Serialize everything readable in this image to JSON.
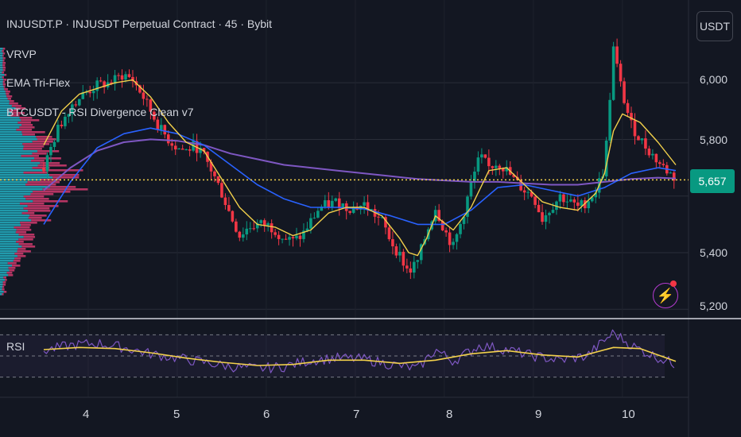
{
  "header": {
    "title": "INJUSDT.P · INJUSDT Perpetual Contract · 45 · Bybit",
    "indicators": [
      "VRVP",
      "EMA Tri-Flex",
      "BTCUSDT - RSI Divergence Clean v7"
    ],
    "currency": "USDT",
    "rsi_label": "RSI"
  },
  "price_tag": "5,657",
  "colors": {
    "background": "#131722",
    "up": "#089981",
    "down": "#f23645",
    "ema_fast": "#f2d04b",
    "ema_mid": "#2962ff",
    "ema_slow": "#7e57c2",
    "rsi": "#7e57c2",
    "vp_up": "#26c6da",
    "vp_down": "#ec407a"
  },
  "chart_data": {
    "type": "candlestick",
    "x_ticks": [
      "4",
      "5",
      "6",
      "7",
      "8",
      "9",
      "10"
    ],
    "y_ticks": [
      "6,000",
      "5,800",
      "5,400",
      "5,200"
    ],
    "y_range": [
      5170,
      6180
    ],
    "last_price": 5657,
    "price_close_path": [
      [
        3.5,
        5700
      ],
      [
        3.65,
        5830
      ],
      [
        3.8,
        5920
      ],
      [
        3.95,
        5960
      ],
      [
        4.1,
        5990
      ],
      [
        4.25,
        6000
      ],
      [
        4.4,
        6030
      ],
      [
        4.5,
        6010
      ],
      [
        4.6,
        5960
      ],
      [
        4.7,
        5900
      ],
      [
        4.8,
        5840
      ],
      [
        4.9,
        5800
      ],
      [
        5.0,
        5770
      ],
      [
        5.1,
        5760
      ],
      [
        5.2,
        5780
      ],
      [
        5.3,
        5740
      ],
      [
        5.4,
        5680
      ],
      [
        5.5,
        5610
      ],
      [
        5.6,
        5530
      ],
      [
        5.7,
        5460
      ],
      [
        5.8,
        5490
      ],
      [
        5.9,
        5500
      ],
      [
        6.0,
        5500
      ],
      [
        6.1,
        5480
      ],
      [
        6.2,
        5450
      ],
      [
        6.3,
        5440
      ],
      [
        6.4,
        5460
      ],
      [
        6.5,
        5510
      ],
      [
        6.6,
        5560
      ],
      [
        6.7,
        5570
      ],
      [
        6.8,
        5580
      ],
      [
        6.9,
        5560
      ],
      [
        7.0,
        5560
      ],
      [
        7.1,
        5570
      ],
      [
        7.2,
        5540
      ],
      [
        7.3,
        5510
      ],
      [
        7.4,
        5440
      ],
      [
        7.5,
        5390
      ],
      [
        7.6,
        5330
      ],
      [
        7.7,
        5370
      ],
      [
        7.8,
        5470
      ],
      [
        7.9,
        5560
      ],
      [
        8.0,
        5480
      ],
      [
        8.1,
        5420
      ],
      [
        8.2,
        5520
      ],
      [
        8.3,
        5640
      ],
      [
        8.4,
        5740
      ],
      [
        8.5,
        5700
      ],
      [
        8.6,
        5720
      ],
      [
        8.7,
        5690
      ],
      [
        8.8,
        5650
      ],
      [
        8.9,
        5620
      ],
      [
        9.0,
        5600
      ],
      [
        9.1,
        5520
      ],
      [
        9.2,
        5560
      ],
      [
        9.3,
        5600
      ],
      [
        9.4,
        5580
      ],
      [
        9.5,
        5560
      ],
      [
        9.6,
        5580
      ],
      [
        9.7,
        5620
      ],
      [
        9.8,
        5700
      ],
      [
        9.9,
        6120
      ],
      [
        10.0,
        5960
      ],
      [
        10.1,
        5850
      ],
      [
        10.2,
        5800
      ],
      [
        10.3,
        5760
      ],
      [
        10.4,
        5720
      ],
      [
        10.5,
        5690
      ],
      [
        10.6,
        5660
      ]
    ],
    "ema_fast": [
      [
        3.5,
        5780
      ],
      [
        3.7,
        5900
      ],
      [
        3.9,
        5960
      ],
      [
        4.1,
        5980
      ],
      [
        4.3,
        6000
      ],
      [
        4.5,
        6010
      ],
      [
        4.7,
        5950
      ],
      [
        4.9,
        5860
      ],
      [
        5.1,
        5790
      ],
      [
        5.3,
        5760
      ],
      [
        5.5,
        5660
      ],
      [
        5.7,
        5560
      ],
      [
        5.9,
        5500
      ],
      [
        6.1,
        5490
      ],
      [
        6.3,
        5460
      ],
      [
        6.5,
        5480
      ],
      [
        6.7,
        5540
      ],
      [
        6.9,
        5560
      ],
      [
        7.1,
        5560
      ],
      [
        7.3,
        5530
      ],
      [
        7.5,
        5450
      ],
      [
        7.6,
        5400
      ],
      [
        7.7,
        5390
      ],
      [
        7.8,
        5450
      ],
      [
        7.9,
        5530
      ],
      [
        8.1,
        5480
      ],
      [
        8.3,
        5560
      ],
      [
        8.5,
        5690
      ],
      [
        8.7,
        5700
      ],
      [
        8.9,
        5640
      ],
      [
        9.1,
        5580
      ],
      [
        9.3,
        5560
      ],
      [
        9.5,
        5550
      ],
      [
        9.7,
        5610
      ],
      [
        9.8,
        5680
      ],
      [
        9.9,
        5830
      ],
      [
        10.0,
        5890
      ],
      [
        10.2,
        5860
      ],
      [
        10.4,
        5790
      ],
      [
        10.6,
        5710
      ]
    ],
    "ema_mid": [
      [
        3.5,
        5500
      ],
      [
        3.8,
        5650
      ],
      [
        4.1,
        5770
      ],
      [
        4.4,
        5820
      ],
      [
        4.7,
        5840
      ],
      [
        5.0,
        5820
      ],
      [
        5.3,
        5780
      ],
      [
        5.6,
        5710
      ],
      [
        5.9,
        5640
      ],
      [
        6.2,
        5590
      ],
      [
        6.5,
        5560
      ],
      [
        6.8,
        5560
      ],
      [
        7.1,
        5555
      ],
      [
        7.4,
        5530
      ],
      [
        7.7,
        5500
      ],
      [
        8.0,
        5500
      ],
      [
        8.3,
        5550
      ],
      [
        8.6,
        5630
      ],
      [
        8.9,
        5640
      ],
      [
        9.2,
        5620
      ],
      [
        9.5,
        5600
      ],
      [
        9.8,
        5630
      ],
      [
        10.1,
        5680
      ],
      [
        10.4,
        5700
      ],
      [
        10.6,
        5690
      ]
    ],
    "ema_slow": [
      [
        3.5,
        5620
      ],
      [
        3.8,
        5700
      ],
      [
        4.1,
        5760
      ],
      [
        4.4,
        5790
      ],
      [
        4.7,
        5800
      ],
      [
        5.0,
        5795
      ],
      [
        5.3,
        5780
      ],
      [
        5.6,
        5750
      ],
      [
        5.9,
        5730
      ],
      [
        6.2,
        5710
      ],
      [
        6.5,
        5700
      ],
      [
        6.8,
        5690
      ],
      [
        7.1,
        5680
      ],
      [
        7.4,
        5670
      ],
      [
        7.7,
        5660
      ],
      [
        8.0,
        5655
      ],
      [
        8.3,
        5650
      ],
      [
        8.6,
        5650
      ],
      [
        8.9,
        5645
      ],
      [
        9.2,
        5640
      ],
      [
        9.5,
        5640
      ],
      [
        9.8,
        5650
      ],
      [
        10.1,
        5660
      ],
      [
        10.4,
        5665
      ],
      [
        10.6,
        5662
      ]
    ],
    "rsi_range": [
      20,
      80
    ],
    "rsi_levels": [
      70,
      50,
      30
    ],
    "rsi": [
      [
        3.5,
        55
      ],
      [
        3.8,
        60
      ],
      [
        4.1,
        62
      ],
      [
        4.4,
        58
      ],
      [
        4.7,
        52
      ],
      [
        5.0,
        48
      ],
      [
        5.3,
        44
      ],
      [
        5.6,
        40
      ],
      [
        5.9,
        38
      ],
      [
        6.2,
        40
      ],
      [
        6.5,
        46
      ],
      [
        6.8,
        48
      ],
      [
        7.1,
        47
      ],
      [
        7.4,
        42
      ],
      [
        7.7,
        38
      ],
      [
        7.9,
        56
      ],
      [
        8.1,
        45
      ],
      [
        8.4,
        60
      ],
      [
        8.7,
        56
      ],
      [
        9.0,
        50
      ],
      [
        9.3,
        46
      ],
      [
        9.6,
        50
      ],
      [
        9.9,
        72
      ],
      [
        10.1,
        60
      ],
      [
        10.3,
        52
      ],
      [
        10.6,
        42
      ]
    ],
    "rsi_ma": [
      [
        3.5,
        56
      ],
      [
        3.9,
        58
      ],
      [
        4.3,
        57
      ],
      [
        4.7,
        53
      ],
      [
        5.1,
        48
      ],
      [
        5.5,
        44
      ],
      [
        5.9,
        41
      ],
      [
        6.3,
        42
      ],
      [
        6.7,
        46
      ],
      [
        7.1,
        46
      ],
      [
        7.5,
        43
      ],
      [
        7.9,
        46
      ],
      [
        8.3,
        52
      ],
      [
        8.7,
        55
      ],
      [
        9.1,
        51
      ],
      [
        9.5,
        49
      ],
      [
        9.9,
        58
      ],
      [
        10.2,
        57
      ],
      [
        10.6,
        45
      ]
    ]
  }
}
